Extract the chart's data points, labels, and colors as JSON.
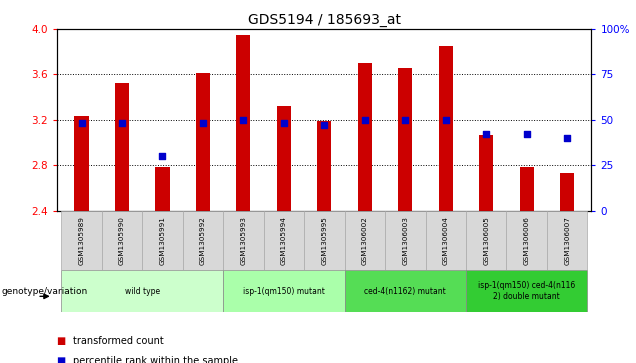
{
  "title": "GDS5194 / 185693_at",
  "samples": [
    "GSM1305989",
    "GSM1305990",
    "GSM1305991",
    "GSM1305992",
    "GSM1305993",
    "GSM1305994",
    "GSM1305995",
    "GSM1306002",
    "GSM1306003",
    "GSM1306004",
    "GSM1306005",
    "GSM1306006",
    "GSM1306007"
  ],
  "transformed_count": [
    3.23,
    3.52,
    2.78,
    3.61,
    3.95,
    3.32,
    3.19,
    3.7,
    3.66,
    3.85,
    3.07,
    2.78,
    2.73
  ],
  "percentile_rank": [
    48,
    48,
    30,
    48,
    50,
    48,
    47,
    50,
    50,
    50,
    42,
    42,
    40
  ],
  "ylim": [
    2.4,
    4.0
  ],
  "y2lim": [
    0,
    100
  ],
  "yticks": [
    2.4,
    2.8,
    3.2,
    3.6,
    4.0
  ],
  "y2ticks": [
    0,
    25,
    50,
    75,
    100
  ],
  "bar_color": "#cc0000",
  "dot_color": "#0000cc",
  "groups": [
    {
      "label": "wild type",
      "indices": [
        0,
        1,
        2,
        3
      ],
      "color": "#ccffcc"
    },
    {
      "label": "isp-1(qm150) mutant",
      "indices": [
        4,
        5,
        6
      ],
      "color": "#aaffaa"
    },
    {
      "label": "ced-4(n1162) mutant",
      "indices": [
        7,
        8,
        9
      ],
      "color": "#55dd55"
    },
    {
      "label": "isp-1(qm150) ced-4(n116\n2) double mutant",
      "indices": [
        10,
        11,
        12
      ],
      "color": "#33cc33"
    }
  ],
  "legend_bar_label": "transformed count",
  "legend_dot_label": "percentile rank within the sample",
  "genotype_label": "genotype/variation",
  "bar_width": 0.35,
  "base_value": 2.4,
  "gridlines": [
    2.8,
    3.2,
    3.6
  ]
}
